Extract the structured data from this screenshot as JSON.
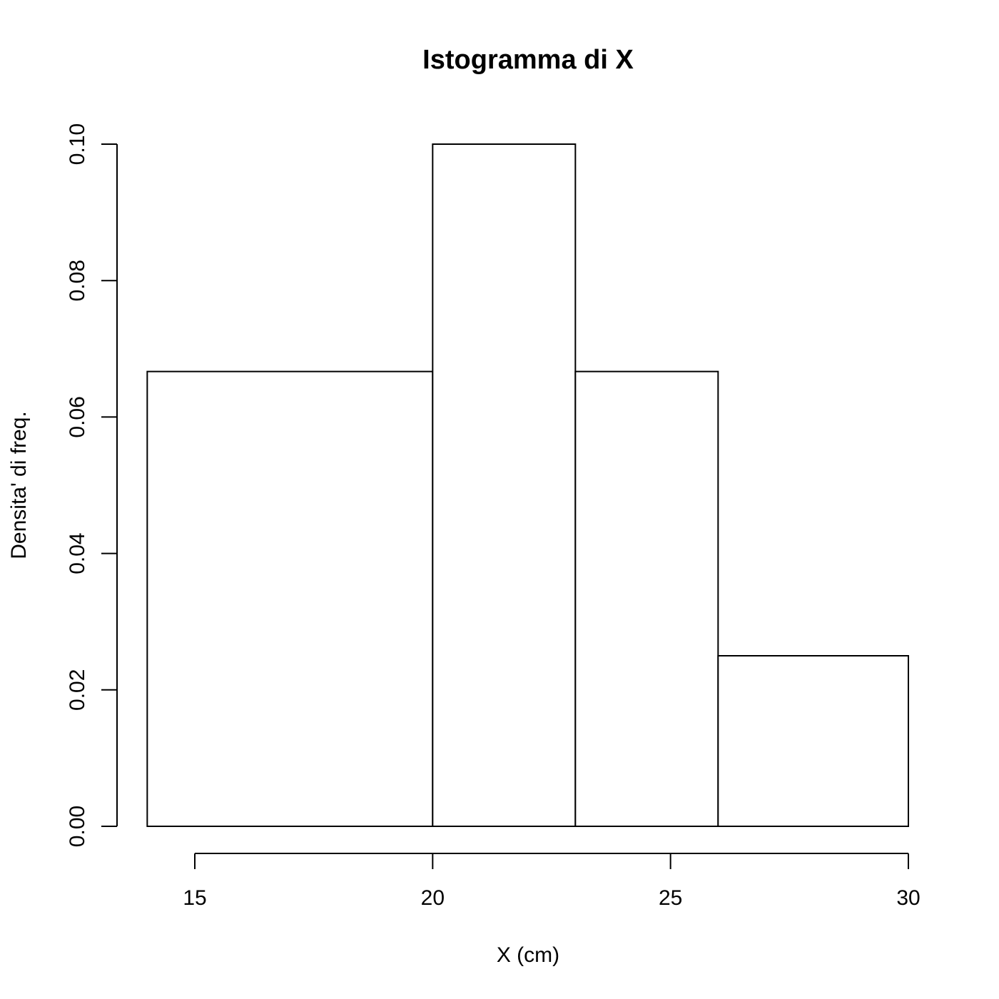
{
  "chart_data": {
    "type": "bar",
    "title": "Istogramma di X",
    "xlabel": "X (cm)",
    "ylabel": "Densita' di freq.",
    "bins": [
      {
        "start": 14,
        "end": 20,
        "density": 0.06667
      },
      {
        "start": 20,
        "end": 23,
        "density": 0.1
      },
      {
        "start": 23,
        "end": 26,
        "density": 0.06667
      },
      {
        "start": 26,
        "end": 30,
        "density": 0.025
      }
    ],
    "x_ticks": [
      "15",
      "20",
      "25",
      "30"
    ],
    "y_ticks": [
      "0.00",
      "0.02",
      "0.04",
      "0.06",
      "0.08",
      "0.10"
    ],
    "xlim": [
      15,
      30
    ],
    "ylim": [
      0,
      0.1
    ],
    "grid": false,
    "colors": {
      "bar_fill": "#ffffff",
      "bar_stroke": "#000000"
    }
  }
}
